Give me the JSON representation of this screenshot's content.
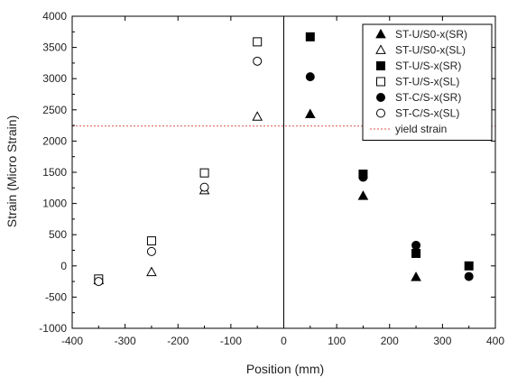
{
  "chart_data": {
    "type": "scatter",
    "xlabel": "Position (mm)",
    "ylabel": "Strain (Micro Strain)",
    "xlim": [
      -400,
      400
    ],
    "ylim": [
      -1000,
      4000
    ],
    "xticks": [
      "-400",
      "-300",
      "-200",
      "-100",
      "0",
      "100",
      "200",
      "300",
      "400"
    ],
    "yticks": [
      "-1000",
      "-500",
      "0",
      "500",
      "1000",
      "1500",
      "2000",
      "2500",
      "3000",
      "3500",
      "4000"
    ],
    "grid": false,
    "legend_position": "top-right",
    "series": [
      {
        "name": "ST-U/S0-x(SR)",
        "marker": "triangle",
        "filled": true,
        "points": [
          [
            50,
            2430
          ],
          [
            150,
            1120
          ],
          [
            250,
            -180
          ]
        ]
      },
      {
        "name": "ST-U/S0-x(SL)",
        "marker": "triangle",
        "filled": false,
        "points": [
          [
            -350,
            -230
          ],
          [
            -250,
            -100
          ],
          [
            -150,
            1210
          ],
          [
            -50,
            2390
          ]
        ]
      },
      {
        "name": "ST-U/S-x(SR)",
        "marker": "square",
        "filled": true,
        "points": [
          [
            50,
            3670
          ],
          [
            150,
            1470
          ],
          [
            250,
            200
          ],
          [
            350,
            0
          ]
        ]
      },
      {
        "name": "ST-U/S-x(SL)",
        "marker": "square",
        "filled": false,
        "points": [
          [
            -350,
            -210
          ],
          [
            -250,
            400
          ],
          [
            -150,
            1490
          ],
          [
            -50,
            3590
          ]
        ]
      },
      {
        "name": "ST-C/S-x(SR)",
        "marker": "circle",
        "filled": true,
        "points": [
          [
            50,
            3030
          ],
          [
            150,
            1420
          ],
          [
            250,
            330
          ],
          [
            350,
            -170
          ]
        ]
      },
      {
        "name": "ST-C/S-x(SL)",
        "marker": "circle",
        "filled": false,
        "points": [
          [
            -350,
            -250
          ],
          [
            -250,
            230
          ],
          [
            -150,
            1260
          ],
          [
            -50,
            3280
          ]
        ]
      }
    ],
    "reference_lines": [
      {
        "name": "yield strain",
        "orientation": "horizontal",
        "y": 2240,
        "color": "#d9534f",
        "style": "dotted"
      },
      {
        "orientation": "vertical",
        "x": 0,
        "color": "#000000",
        "style": "solid"
      }
    ]
  }
}
